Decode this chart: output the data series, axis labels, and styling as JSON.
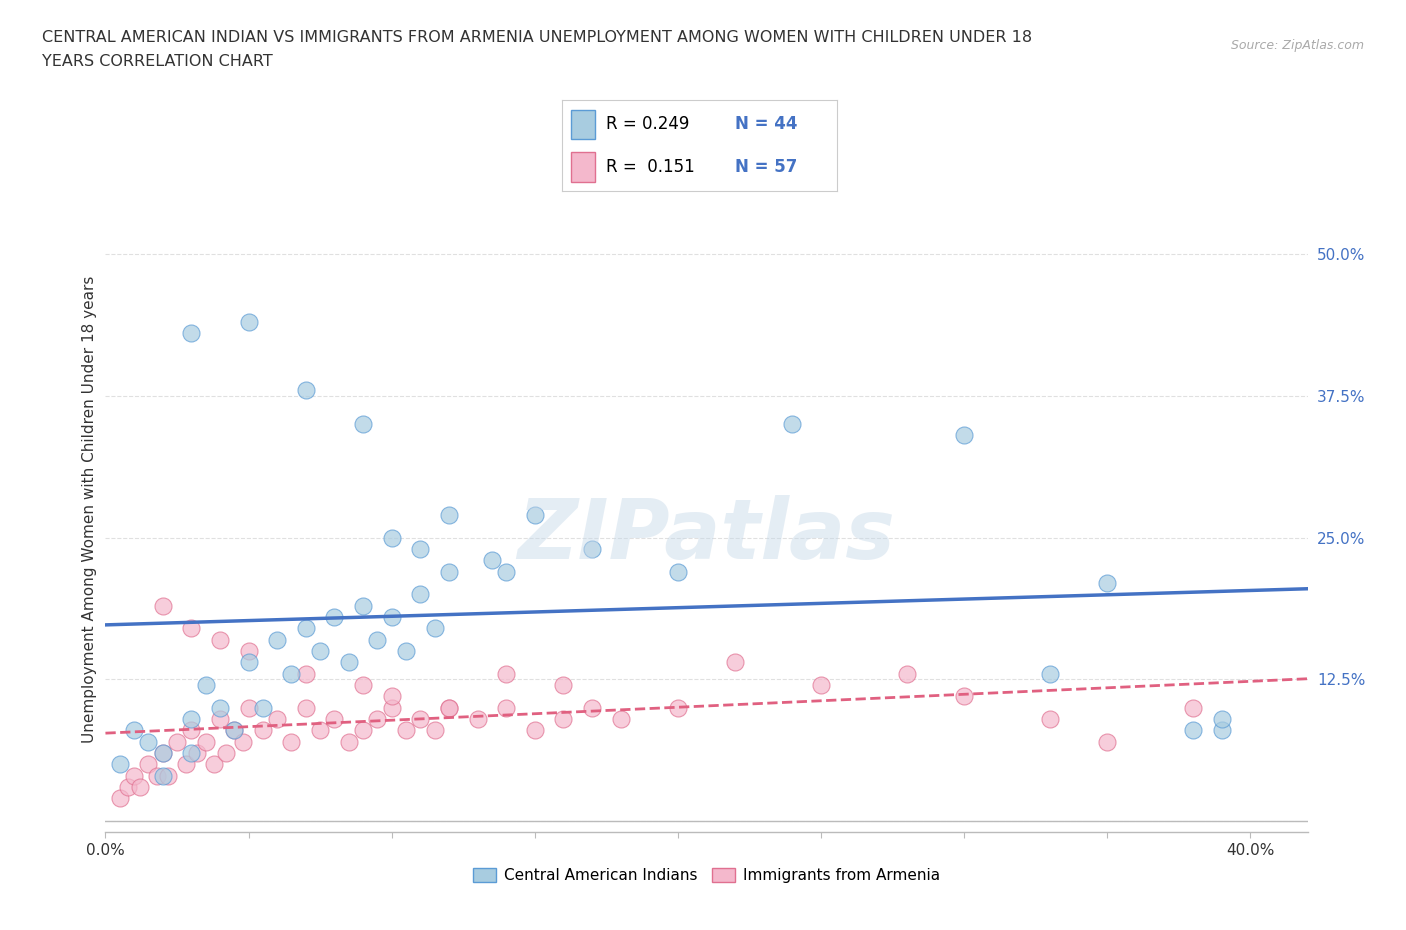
{
  "title_line1": "CENTRAL AMERICAN INDIAN VS IMMIGRANTS FROM ARMENIA UNEMPLOYMENT AMONG WOMEN WITH CHILDREN UNDER 18",
  "title_line2": "YEARS CORRELATION CHART",
  "source": "Source: ZipAtlas.com",
  "ylabel": "Unemployment Among Women with Children Under 18 years",
  "xlim": [
    0.0,
    0.42
  ],
  "ylim": [
    -0.01,
    0.56
  ],
  "xtick_positions": [
    0.0,
    0.05,
    0.1,
    0.15,
    0.2,
    0.25,
    0.3,
    0.35,
    0.4
  ],
  "xticklabels": [
    "0.0%",
    "",
    "",
    "",
    "",
    "",
    "",
    "",
    "40.0%"
  ],
  "ytick_positions": [
    0.0,
    0.125,
    0.25,
    0.375,
    0.5
  ],
  "yticklabels_right": [
    "",
    "12.5%",
    "25.0%",
    "37.5%",
    "50.0%"
  ],
  "legend1_label": "Central American Indians",
  "legend2_label": "Immigrants from Armenia",
  "R1": "0.249",
  "N1": "44",
  "R2": "0.151",
  "N2": "57",
  "color_blue_fill": "#a8cce0",
  "color_blue_edge": "#5b9bd5",
  "color_pink_fill": "#f4b8cc",
  "color_pink_edge": "#e07090",
  "line_blue_color": "#4472c4",
  "line_pink_color": "#e06080",
  "bg_color": "#ffffff",
  "grid_color": "#e0e0e0",
  "text_color": "#333333",
  "blue_x": [
    0.005,
    0.01,
    0.015,
    0.02,
    0.02,
    0.03,
    0.03,
    0.035,
    0.04,
    0.045,
    0.05,
    0.055,
    0.06,
    0.065,
    0.07,
    0.075,
    0.08,
    0.085,
    0.09,
    0.095,
    0.1,
    0.105,
    0.11,
    0.115,
    0.12,
    0.03,
    0.05,
    0.07,
    0.09,
    0.1,
    0.11,
    0.12,
    0.135,
    0.14,
    0.15,
    0.17,
    0.2,
    0.24,
    0.3,
    0.33,
    0.35,
    0.38,
    0.39,
    0.39
  ],
  "blue_y": [
    0.05,
    0.08,
    0.07,
    0.06,
    0.04,
    0.09,
    0.06,
    0.12,
    0.1,
    0.08,
    0.14,
    0.1,
    0.16,
    0.13,
    0.17,
    0.15,
    0.18,
    0.14,
    0.19,
    0.16,
    0.18,
    0.15,
    0.2,
    0.17,
    0.22,
    0.43,
    0.44,
    0.38,
    0.35,
    0.25,
    0.24,
    0.27,
    0.23,
    0.22,
    0.27,
    0.24,
    0.22,
    0.35,
    0.34,
    0.13,
    0.21,
    0.08,
    0.08,
    0.09
  ],
  "pink_x": [
    0.005,
    0.008,
    0.01,
    0.012,
    0.015,
    0.018,
    0.02,
    0.022,
    0.025,
    0.028,
    0.03,
    0.032,
    0.035,
    0.038,
    0.04,
    0.042,
    0.045,
    0.048,
    0.05,
    0.055,
    0.06,
    0.065,
    0.07,
    0.075,
    0.08,
    0.085,
    0.09,
    0.095,
    0.1,
    0.105,
    0.11,
    0.115,
    0.12,
    0.13,
    0.14,
    0.15,
    0.16,
    0.17,
    0.18,
    0.02,
    0.03,
    0.04,
    0.05,
    0.07,
    0.09,
    0.1,
    0.12,
    0.14,
    0.16,
    0.2,
    0.22,
    0.25,
    0.28,
    0.3,
    0.33,
    0.35,
    0.38
  ],
  "pink_y": [
    0.02,
    0.03,
    0.04,
    0.03,
    0.05,
    0.04,
    0.06,
    0.04,
    0.07,
    0.05,
    0.08,
    0.06,
    0.07,
    0.05,
    0.09,
    0.06,
    0.08,
    0.07,
    0.1,
    0.08,
    0.09,
    0.07,
    0.1,
    0.08,
    0.09,
    0.07,
    0.08,
    0.09,
    0.1,
    0.08,
    0.09,
    0.08,
    0.1,
    0.09,
    0.1,
    0.08,
    0.09,
    0.1,
    0.09,
    0.19,
    0.17,
    0.16,
    0.15,
    0.13,
    0.12,
    0.11,
    0.1,
    0.13,
    0.12,
    0.1,
    0.14,
    0.12,
    0.13,
    0.11,
    0.09,
    0.07,
    0.1
  ]
}
